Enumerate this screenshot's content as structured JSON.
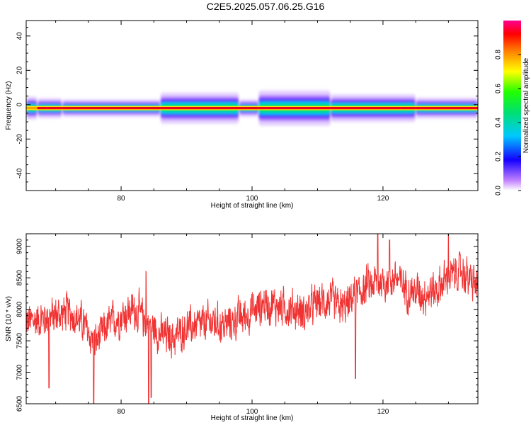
{
  "figure_title": "C2E5.2025.057.06.25.G16",
  "colors": {
    "spectrum_core": "#e8001c",
    "snr_line": "#f03232",
    "axis": "#000000"
  },
  "chart_data": [
    {
      "type": "heatmap",
      "title": "C2E5.2025.057.06.25.G16",
      "xlabel": "Height of straight line (km)",
      "ylabel": "Frequency (Hz)",
      "xlim": [
        65.5,
        134.5
      ],
      "ylim": [
        -50,
        49
      ],
      "x_ticks": [
        80,
        100,
        120
      ],
      "x_tick_labels": [
        "80",
        "100",
        "120"
      ],
      "y_ticks": [
        -40,
        -20,
        0,
        20,
        40
      ],
      "y_tick_labels": [
        "-40",
        "-20",
        "0",
        "20",
        "40"
      ],
      "line_frequency_hz": -2,
      "band_segments": [
        {
          "x": [
            65.5,
            67.2
          ],
          "half_width_hz": 6,
          "peak": 0.55
        },
        {
          "x": [
            67.2,
            71.0
          ],
          "half_width_hz": 3,
          "peak": 0.95
        },
        {
          "x": [
            71.0,
            86.0
          ],
          "half_width_hz": 2.5,
          "peak": 1.0
        },
        {
          "x": [
            86.0,
            98.0
          ],
          "half_width_hz": 5,
          "peak": 0.9
        },
        {
          "x": [
            98.0,
            101.0
          ],
          "half_width_hz": 2.5,
          "peak": 1.0
        },
        {
          "x": [
            101.0,
            112.0
          ],
          "half_width_hz": 6,
          "peak": 0.85
        },
        {
          "x": [
            112.0,
            125.0
          ],
          "half_width_hz": 4,
          "peak": 1.0
        },
        {
          "x": [
            125.0,
            134.5
          ],
          "half_width_hz": 3,
          "peak": 1.0
        }
      ],
      "colorbar": {
        "label": "Normalized spectral amplitude",
        "range": [
          0,
          1
        ],
        "ticks": [
          0.0,
          0.2,
          0.4,
          0.6,
          0.8
        ],
        "tick_labels": [
          "0.0",
          "0.2",
          "0.4",
          "0.6",
          "0.8"
        ]
      }
    },
    {
      "type": "line",
      "xlabel": "Height of straight line (km)",
      "ylabel": "SNR (10 * v/v)",
      "xlim": [
        65.5,
        134.5
      ],
      "ylim": [
        6500,
        9200
      ],
      "x_ticks": [
        80,
        100,
        120
      ],
      "x_tick_labels": [
        "80",
        "100",
        "120"
      ],
      "y_ticks": [
        6500,
        7000,
        7500,
        8000,
        8500,
        9000
      ],
      "y_tick_labels": [
        "6500",
        "7000",
        "7500",
        "8000",
        "8500",
        "9000"
      ],
      "trend": {
        "x": [
          65.5,
          68,
          70,
          72,
          74,
          76,
          78,
          80,
          82,
          84,
          86,
          88,
          90,
          92,
          94,
          96,
          98,
          100,
          102,
          104,
          106,
          108,
          110,
          112,
          114,
          116,
          118,
          120,
          122,
          124,
          126,
          128,
          130,
          132,
          134.5
        ],
        "y": [
          7800,
          7850,
          7900,
          7950,
          7800,
          7450,
          7750,
          7900,
          8000,
          7800,
          7600,
          7550,
          7700,
          7750,
          7800,
          7750,
          7850,
          7950,
          8100,
          8050,
          8000,
          7950,
          8100,
          8150,
          8000,
          8250,
          8400,
          8450,
          8500,
          8300,
          8250,
          8300,
          8500,
          8600,
          8350
        ]
      },
      "noise_amplitude": 230,
      "dips": [
        {
          "x": 69.0,
          "y": 6750
        },
        {
          "x": 75.8,
          "y": 6500
        },
        {
          "x": 84.2,
          "y": 6500
        },
        {
          "x": 84.6,
          "y": 6600
        },
        {
          "x": 115.8,
          "y": 6900
        }
      ],
      "peaks": [
        {
          "x": 83.8,
          "y": 8600
        },
        {
          "x": 119.2,
          "y": 9200
        },
        {
          "x": 121.0,
          "y": 9100
        },
        {
          "x": 130.0,
          "y": 9200
        }
      ]
    }
  ]
}
